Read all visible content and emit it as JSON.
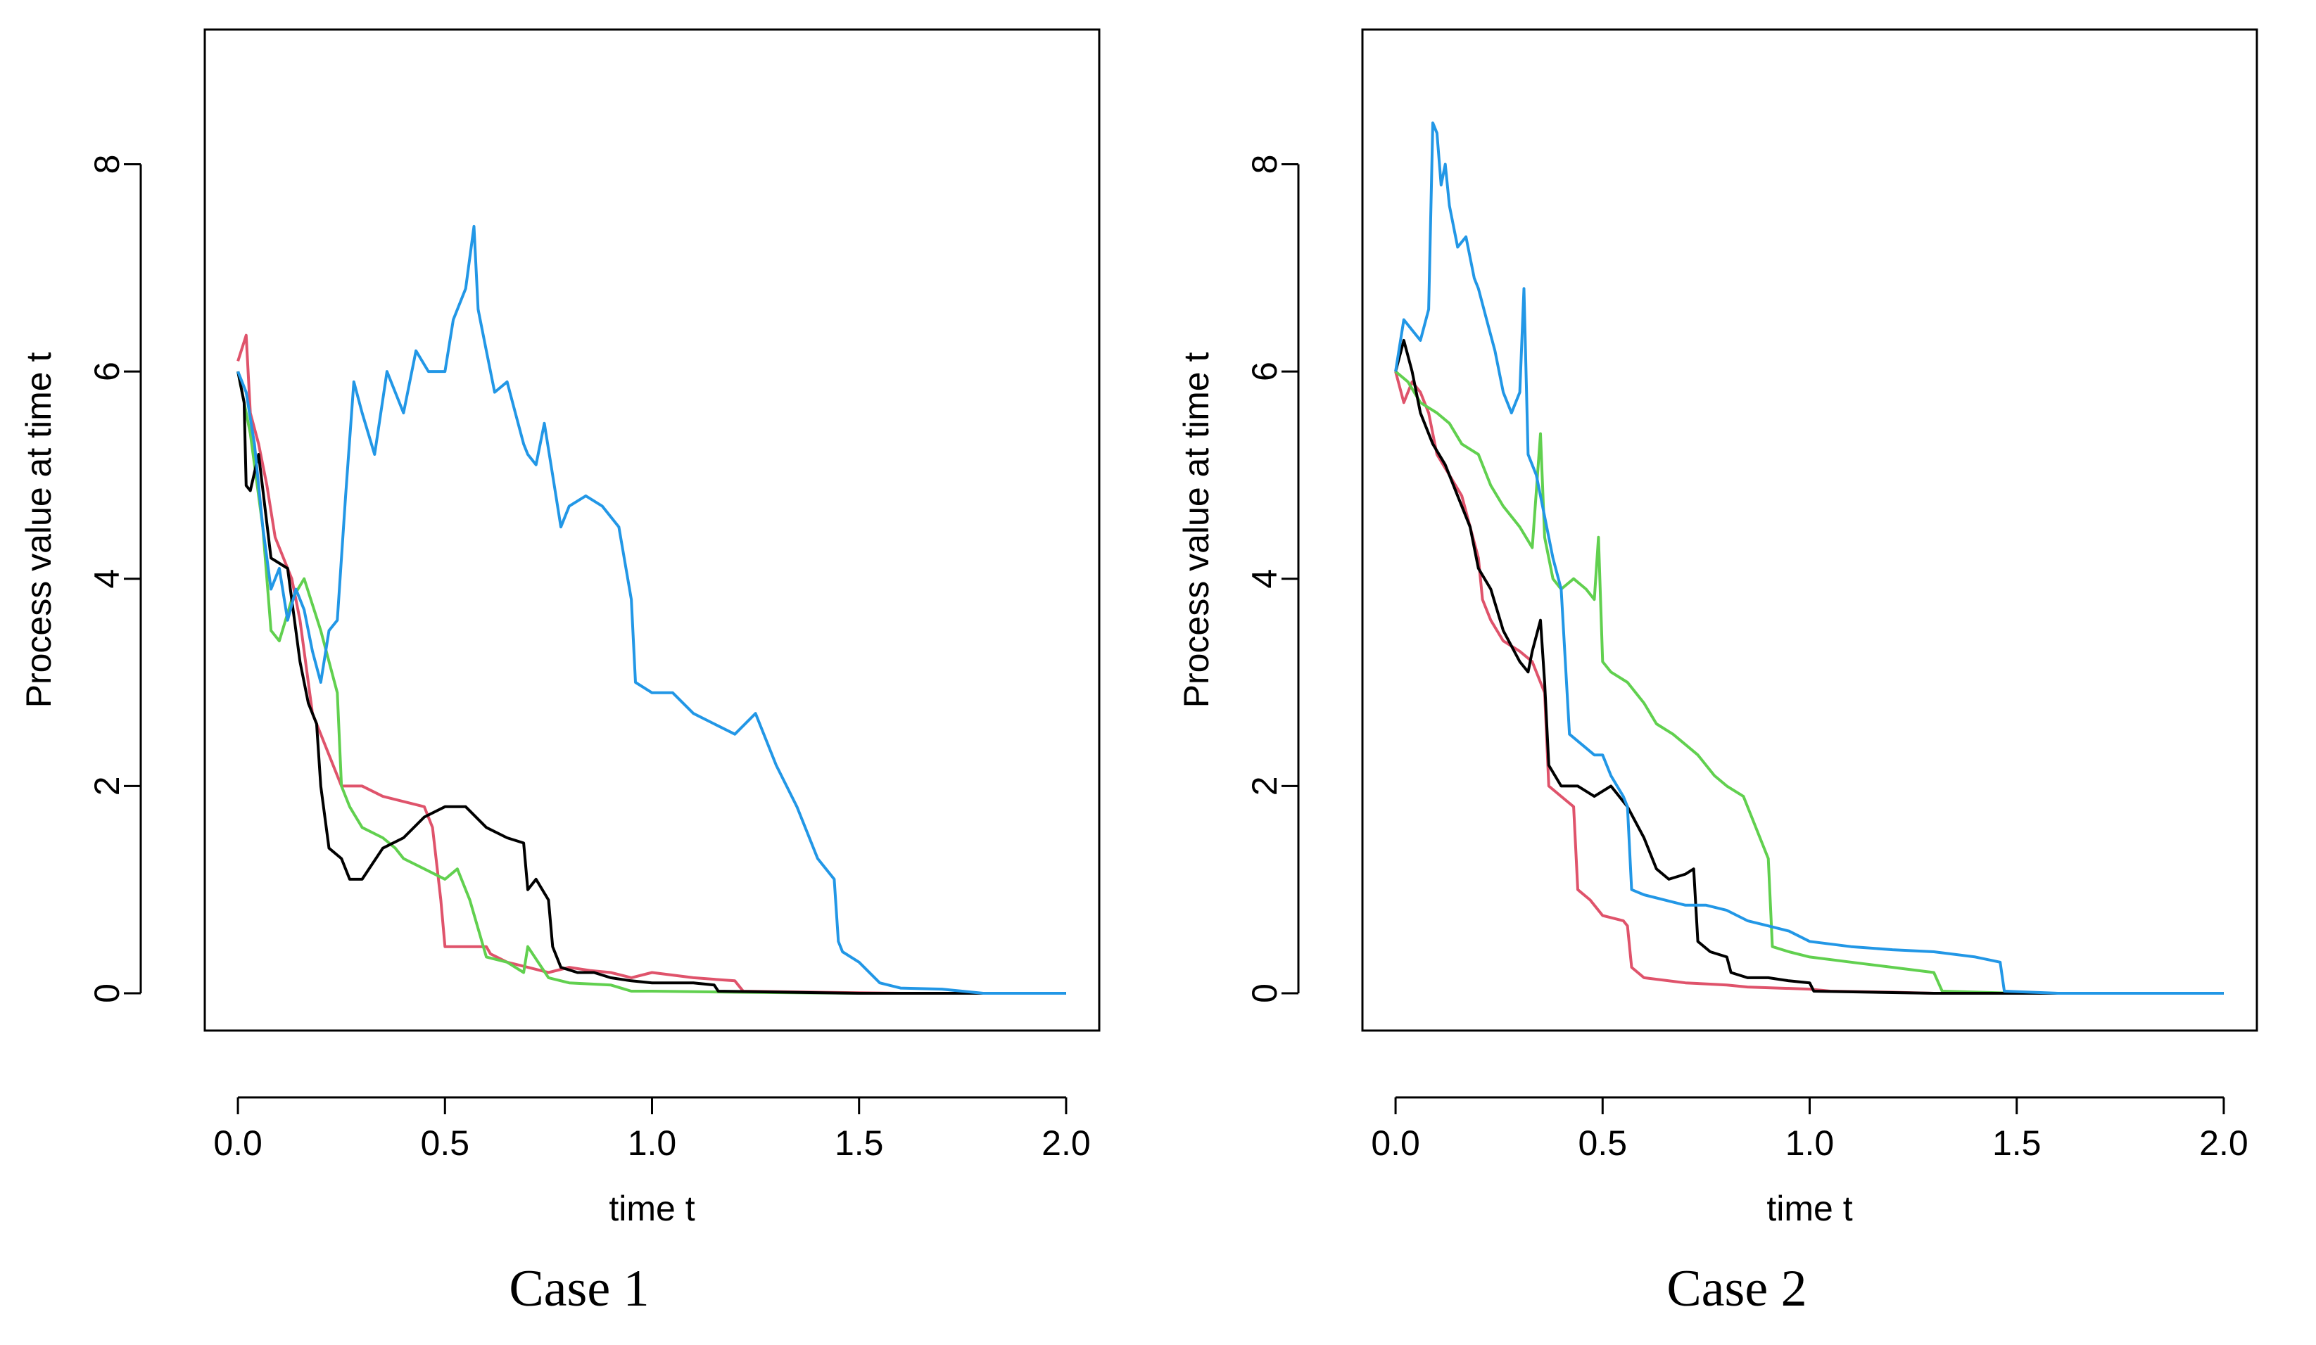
{
  "figure": {
    "captions": [
      "Case 1",
      "Case 2"
    ]
  },
  "chart_data": [
    {
      "type": "line",
      "title": "",
      "xlabel": "time t",
      "ylabel": "Process value at time t",
      "xlim": [
        -0.08,
        2.08
      ],
      "ylim": [
        -0.36,
        9.3
      ],
      "xticks": [
        0.0,
        0.5,
        1.0,
        1.5,
        2.0
      ],
      "xtick_labels": [
        "0.0",
        "0.5",
        "1.0",
        "1.5",
        "2.0"
      ],
      "yticks": [
        0,
        2,
        4,
        6,
        8
      ],
      "ytick_labels": [
        "0",
        "2",
        "4",
        "6",
        "8"
      ],
      "grid": false,
      "legend": "none",
      "series": [
        {
          "color": "#DF536B",
          "x": [
            0,
            0.02,
            0.03,
            0.05,
            0.07,
            0.09,
            0.11,
            0.13,
            0.15,
            0.18,
            0.2,
            0.23,
            0.25,
            0.3,
            0.35,
            0.4,
            0.45,
            0.47,
            0.49,
            0.5,
            0.55,
            0.6,
            0.61,
            0.65,
            0.7,
            0.75,
            0.8,
            0.85,
            0.9,
            0.95,
            1.0,
            1.1,
            1.2,
            1.22,
            1.4,
            1.6,
            2.0
          ],
          "y": [
            6.1,
            6.35,
            5.6,
            5.3,
            4.9,
            4.4,
            4.2,
            4.0,
            3.6,
            2.7,
            2.5,
            2.2,
            2.0,
            2.0,
            1.9,
            1.85,
            1.8,
            1.6,
            0.9,
            0.45,
            0.45,
            0.45,
            0.38,
            0.3,
            0.25,
            0.2,
            0.25,
            0.22,
            0.2,
            0.15,
            0.2,
            0.15,
            0.12,
            0.02,
            0.01,
            0.0,
            0.0
          ]
        },
        {
          "color": "#61D04F",
          "x": [
            0,
            0.03,
            0.06,
            0.08,
            0.1,
            0.13,
            0.16,
            0.2,
            0.24,
            0.25,
            0.27,
            0.3,
            0.35,
            0.38,
            0.4,
            0.45,
            0.5,
            0.53,
            0.56,
            0.6,
            0.65,
            0.69,
            0.7,
            0.75,
            0.8,
            0.9,
            0.95,
            1.0,
            1.2,
            1.5,
            2.0
          ],
          "y": [
            6.0,
            5.4,
            4.5,
            3.5,
            3.4,
            3.8,
            4.0,
            3.5,
            2.9,
            2.0,
            1.8,
            1.6,
            1.5,
            1.4,
            1.3,
            1.2,
            1.1,
            1.2,
            0.9,
            0.35,
            0.3,
            0.2,
            0.45,
            0.15,
            0.1,
            0.08,
            0.02,
            0.02,
            0.01,
            0.0,
            0.0
          ]
        },
        {
          "color": "#000000",
          "x": [
            0,
            0.015,
            0.02,
            0.03,
            0.05,
            0.08,
            0.12,
            0.15,
            0.17,
            0.19,
            0.2,
            0.22,
            0.25,
            0.27,
            0.3,
            0.35,
            0.4,
            0.45,
            0.5,
            0.55,
            0.6,
            0.65,
            0.69,
            0.7,
            0.72,
            0.75,
            0.76,
            0.78,
            0.82,
            0.86,
            0.9,
            0.95,
            1.0,
            1.1,
            1.15,
            1.16,
            1.5,
            2.0
          ],
          "y": [
            6.0,
            5.7,
            4.9,
            4.85,
            5.2,
            4.2,
            4.1,
            3.2,
            2.8,
            2.6,
            2.0,
            1.4,
            1.3,
            1.1,
            1.1,
            1.4,
            1.5,
            1.7,
            1.8,
            1.8,
            1.6,
            1.5,
            1.45,
            1.0,
            1.1,
            0.9,
            0.45,
            0.25,
            0.2,
            0.2,
            0.15,
            0.12,
            0.1,
            0.1,
            0.08,
            0.02,
            0.0,
            0.0
          ]
        },
        {
          "color": "#2297E6",
          "x": [
            0,
            0.02,
            0.04,
            0.06,
            0.08,
            0.1,
            0.12,
            0.14,
            0.16,
            0.18,
            0.2,
            0.22,
            0.24,
            0.26,
            0.28,
            0.3,
            0.33,
            0.36,
            0.4,
            0.43,
            0.46,
            0.5,
            0.52,
            0.55,
            0.57,
            0.58,
            0.6,
            0.62,
            0.65,
            0.67,
            0.69,
            0.7,
            0.72,
            0.74,
            0.76,
            0.78,
            0.8,
            0.84,
            0.88,
            0.92,
            0.95,
            0.96,
            1.0,
            1.05,
            1.1,
            1.15,
            1.2,
            1.25,
            1.3,
            1.35,
            1.4,
            1.44,
            1.45,
            1.46,
            1.5,
            1.55,
            1.6,
            1.7,
            1.8,
            2.0
          ],
          "y": [
            6.0,
            5.8,
            5.3,
            4.5,
            3.9,
            4.1,
            3.6,
            3.9,
            3.7,
            3.3,
            3.0,
            3.5,
            3.6,
            4.8,
            5.9,
            5.6,
            5.2,
            6.0,
            5.6,
            6.2,
            6.0,
            6.0,
            6.5,
            6.8,
            7.4,
            6.6,
            6.2,
            5.8,
            5.9,
            5.6,
            5.3,
            5.2,
            5.1,
            5.5,
            5.0,
            4.5,
            4.7,
            4.8,
            4.7,
            4.5,
            3.8,
            3.0,
            2.9,
            2.9,
            2.7,
            2.6,
            2.5,
            2.7,
            2.2,
            1.8,
            1.3,
            1.1,
            0.5,
            0.4,
            0.3,
            0.1,
            0.05,
            0.04,
            0.0,
            0.0
          ]
        }
      ]
    },
    {
      "type": "line",
      "title": "",
      "xlabel": "time t",
      "ylabel": "Process value at time t",
      "xlim": [
        -0.08,
        2.08
      ],
      "ylim": [
        -0.36,
        9.3
      ],
      "xticks": [
        0.0,
        0.5,
        1.0,
        1.5,
        2.0
      ],
      "xtick_labels": [
        "0.0",
        "0.5",
        "1.0",
        "1.5",
        "2.0"
      ],
      "yticks": [
        0,
        2,
        4,
        6,
        8
      ],
      "ytick_labels": [
        "0",
        "2",
        "4",
        "6",
        "8"
      ],
      "grid": false,
      "legend": "none",
      "series": [
        {
          "color": "#DF536B",
          "x": [
            0,
            0.02,
            0.04,
            0.06,
            0.08,
            0.1,
            0.13,
            0.16,
            0.2,
            0.21,
            0.23,
            0.26,
            0.3,
            0.33,
            0.36,
            0.37,
            0.4,
            0.43,
            0.44,
            0.47,
            0.5,
            0.55,
            0.56,
            0.57,
            0.6,
            0.7,
            0.8,
            0.85,
            1.0,
            1.05,
            1.2,
            1.3,
            2.0
          ],
          "y": [
            6.0,
            5.7,
            5.9,
            5.8,
            5.6,
            5.2,
            5.0,
            4.8,
            4.2,
            3.8,
            3.6,
            3.4,
            3.3,
            3.2,
            2.9,
            2.0,
            1.9,
            1.8,
            1.0,
            0.9,
            0.75,
            0.7,
            0.65,
            0.25,
            0.15,
            0.1,
            0.08,
            0.06,
            0.04,
            0.02,
            0.01,
            0.0,
            0.0
          ]
        },
        {
          "color": "#61D04F",
          "x": [
            0,
            0.03,
            0.06,
            0.1,
            0.13,
            0.16,
            0.2,
            0.23,
            0.26,
            0.3,
            0.33,
            0.35,
            0.36,
            0.38,
            0.4,
            0.43,
            0.46,
            0.48,
            0.49,
            0.5,
            0.52,
            0.56,
            0.6,
            0.63,
            0.67,
            0.7,
            0.73,
            0.77,
            0.8,
            0.84,
            0.88,
            0.9,
            0.91,
            0.95,
            1.0,
            1.1,
            1.2,
            1.3,
            1.32,
            1.5,
            2.0
          ],
          "y": [
            6.0,
            5.9,
            5.7,
            5.6,
            5.5,
            5.3,
            5.2,
            4.9,
            4.7,
            4.5,
            4.3,
            5.4,
            4.4,
            4.0,
            3.9,
            4.0,
            3.9,
            3.8,
            4.4,
            3.2,
            3.1,
            3.0,
            2.8,
            2.6,
            2.5,
            2.4,
            2.3,
            2.1,
            2.0,
            1.9,
            1.5,
            1.3,
            0.45,
            0.4,
            0.35,
            0.3,
            0.25,
            0.2,
            0.02,
            0.0,
            0.0
          ]
        },
        {
          "color": "#000000",
          "x": [
            0,
            0.02,
            0.04,
            0.06,
            0.09,
            0.12,
            0.15,
            0.18,
            0.2,
            0.23,
            0.26,
            0.3,
            0.32,
            0.33,
            0.35,
            0.36,
            0.37,
            0.4,
            0.44,
            0.48,
            0.52,
            0.56,
            0.6,
            0.63,
            0.66,
            0.7,
            0.72,
            0.73,
            0.76,
            0.8,
            0.81,
            0.85,
            0.9,
            0.95,
            1.0,
            1.01,
            1.3,
            2.0
          ],
          "y": [
            6.0,
            6.3,
            6.0,
            5.6,
            5.3,
            5.1,
            4.8,
            4.5,
            4.1,
            3.9,
            3.5,
            3.2,
            3.1,
            3.3,
            3.6,
            3.0,
            2.2,
            2.0,
            2.0,
            1.9,
            2.0,
            1.8,
            1.5,
            1.2,
            1.1,
            1.15,
            1.2,
            0.5,
            0.4,
            0.35,
            0.2,
            0.15,
            0.15,
            0.12,
            0.1,
            0.02,
            0.0,
            0.0
          ]
        },
        {
          "color": "#2297E6",
          "x": [
            0,
            0.02,
            0.04,
            0.06,
            0.08,
            0.09,
            0.1,
            0.11,
            0.12,
            0.13,
            0.15,
            0.17,
            0.19,
            0.2,
            0.22,
            0.24,
            0.26,
            0.28,
            0.3,
            0.31,
            0.32,
            0.34,
            0.36,
            0.38,
            0.4,
            0.42,
            0.45,
            0.48,
            0.5,
            0.52,
            0.55,
            0.56,
            0.57,
            0.6,
            0.65,
            0.7,
            0.75,
            0.8,
            0.85,
            0.9,
            0.95,
            1.0,
            1.1,
            1.2,
            1.3,
            1.4,
            1.46,
            1.47,
            1.6,
            2.0
          ],
          "y": [
            6.0,
            6.5,
            6.4,
            6.3,
            6.6,
            8.4,
            8.3,
            7.8,
            8.0,
            7.6,
            7.2,
            7.3,
            6.9,
            6.8,
            6.5,
            6.2,
            5.8,
            5.6,
            5.8,
            6.8,
            5.2,
            5.0,
            4.6,
            4.2,
            3.9,
            2.5,
            2.4,
            2.3,
            2.3,
            2.1,
            1.9,
            1.8,
            1.0,
            0.95,
            0.9,
            0.85,
            0.85,
            0.8,
            0.7,
            0.65,
            0.6,
            0.5,
            0.45,
            0.42,
            0.4,
            0.35,
            0.3,
            0.02,
            0.0,
            0.0
          ]
        }
      ]
    }
  ]
}
